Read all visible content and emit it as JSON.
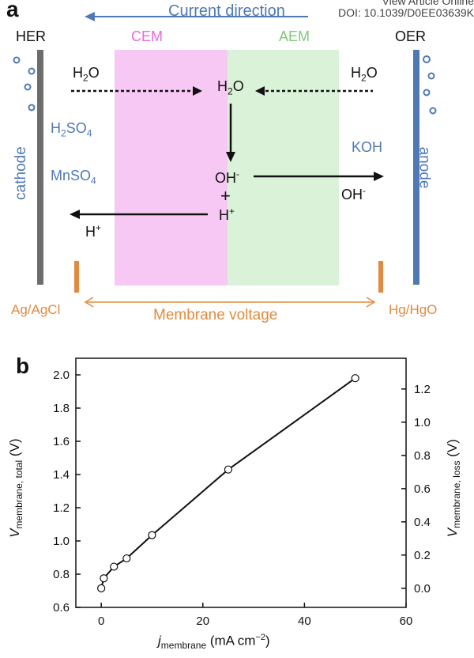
{
  "header": {
    "doi_line1": "View Article Online",
    "doi_line2": "DOI: 10.1039/D0EE03639K"
  },
  "panel_a": {
    "letter": "a",
    "current_direction": "Current direction",
    "her": "HER",
    "oer": "OER",
    "cem": "CEM",
    "aem": "AEM",
    "cathode": "cathode",
    "anode": "anode",
    "h2o_left": "H2O",
    "h2o_center": "H2O",
    "h2o_right": "H2O",
    "h2so4": "H2SO4",
    "mnso4": "MnSO4",
    "koh": "KOH",
    "oh_center": "OH-",
    "plus": "+",
    "h_center": "H+",
    "oh_right": "OH-",
    "h_left": "H+",
    "ag_agcl": "Ag/AgCl",
    "hg_hgo": "Hg/HgO",
    "membrane_voltage": "Membrane voltage",
    "colors": {
      "cem": "#f7c8f4",
      "aem": "#daf2d7",
      "cathode": "#6d6d6d",
      "anode": "#4f79b4",
      "reference": "#e08b3f"
    }
  },
  "panel_b": {
    "letter": "b",
    "xlabel_main": "j",
    "xlabel_sub": "membrane",
    "xlabel_units": " (mA cm",
    "xlabel_sup": "−2",
    "xlabel_close": ")",
    "ylabel_left_main": "V",
    "ylabel_left_sub": "membrane, total",
    "ylabel_left_units": " (V)",
    "ylabel_right_main": "V",
    "ylabel_right_sub": "membrane, loss",
    "ylabel_right_units": " (V)"
  },
  "chart_data": {
    "type": "scatter",
    "x": [
      0,
      0.5,
      2.5,
      5,
      10,
      25,
      50
    ],
    "y": [
      0.715,
      0.775,
      0.845,
      0.895,
      1.035,
      1.43,
      1.98
    ],
    "line": "connected",
    "marker": "open-circle",
    "xlim": [
      -5,
      60
    ],
    "ylim": [
      0.6,
      2.1
    ],
    "x_ticks": [
      0,
      20,
      40,
      60
    ],
    "y_ticks": [
      0.6,
      0.8,
      1.0,
      1.2,
      1.4,
      1.6,
      1.8,
      2.0
    ],
    "y_tick_labels": [
      "0.6",
      "0.8",
      "1.0",
      "1.2",
      "1.4",
      "1.6",
      "1.8",
      "2.0"
    ],
    "y2_ticks": [
      0.0,
      0.2,
      0.4,
      0.6,
      0.8,
      1.0,
      1.2
    ],
    "y2_tick_labels": [
      "0.0",
      "0.2",
      "0.4",
      "0.6",
      "0.8",
      "1.0",
      "1.2"
    ],
    "y2_offset": 0.715
  }
}
